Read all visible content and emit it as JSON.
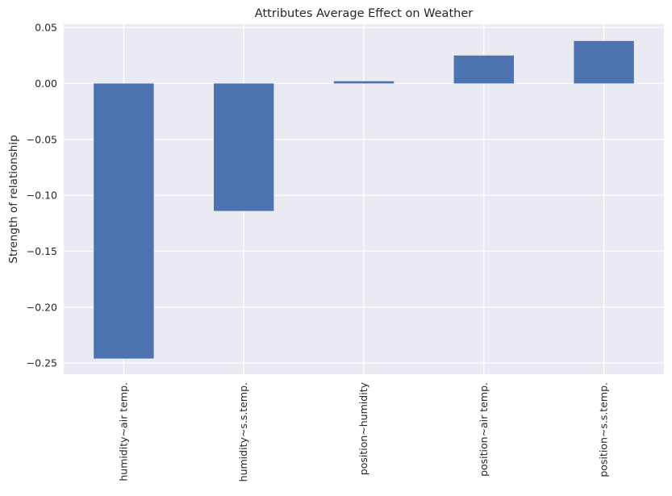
{
  "chart_data": {
    "type": "bar",
    "title": "Attributes Average Effect on Weather",
    "xlabel": "",
    "ylabel": "Strength of relationship",
    "categories": [
      "humidity~air temp.",
      "humidity~s.s.temp.",
      "position~humidity",
      "position~air temp.",
      "position~s.s.temp."
    ],
    "values": [
      -0.246,
      -0.114,
      0.002,
      0.025,
      0.038
    ],
    "ylim": [
      -0.26,
      0.053
    ],
    "yticks": [
      0.05,
      0.0,
      -0.05,
      -0.1,
      -0.15,
      -0.2,
      -0.25
    ],
    "ytick_labels": [
      "0.05",
      "0.00",
      "−0.05",
      "−0.10",
      "−0.15",
      "−0.20",
      "−0.25"
    ],
    "grid": true,
    "legend": "none",
    "colors": {
      "bar": "#4c72b0",
      "background": "#eaeaf2",
      "grid": "#ffffff"
    }
  }
}
